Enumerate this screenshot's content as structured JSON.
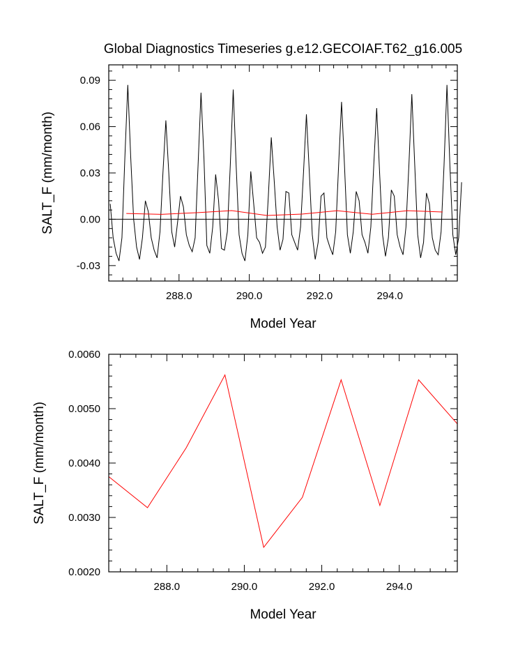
{
  "title": "Global Diagnostics Timeseries g.e12.GECOIAF.T62_g16.005",
  "chart_data": [
    {
      "type": "line",
      "xlabel": "Model Year",
      "ylabel": "SALT_F (mm/month)",
      "xlim": [
        286.0,
        295.92
      ],
      "ylim": [
        -0.04,
        0.1
      ],
      "x_ticks": [
        288.0,
        290.0,
        292.0,
        294.0
      ],
      "x_tick_labels": [
        "288.0",
        "290.0",
        "292.0",
        "294.0"
      ],
      "y_ticks": [
        -0.03,
        0.0,
        0.03,
        0.06,
        0.09
      ],
      "y_tick_labels": [
        "-0.03",
        "0.00",
        "0.03",
        "0.06",
        "0.09"
      ],
      "zero_line": true,
      "series": [
        {
          "color": "#000000",
          "x_start": 286.042,
          "x_step": 0.0833333,
          "values": [
            0.01,
            -0.012,
            -0.022,
            -0.027,
            -0.012,
            0.04,
            0.087,
            0.04,
            0.0,
            -0.018,
            -0.026,
            -0.012,
            0.012,
            0.005,
            -0.012,
            -0.02,
            -0.025,
            -0.008,
            0.03,
            0.064,
            0.03,
            -0.008,
            -0.018,
            -0.002,
            0.015,
            0.008,
            -0.01,
            -0.017,
            -0.021,
            -0.012,
            0.035,
            0.082,
            0.04,
            -0.017,
            -0.022,
            -0.005,
            0.029,
            0.012,
            -0.019,
            -0.02,
            -0.008,
            0.035,
            0.084,
            0.035,
            -0.01,
            -0.022,
            -0.027,
            -0.01,
            0.031,
            0.01,
            -0.012,
            -0.015,
            -0.022,
            -0.018,
            0.015,
            0.053,
            0.025,
            -0.005,
            -0.02,
            -0.013,
            0.018,
            0.017,
            -0.01,
            -0.015,
            -0.02,
            -0.005,
            0.03,
            0.068,
            0.03,
            -0.01,
            -0.026,
            -0.015,
            0.015,
            0.017,
            -0.012,
            -0.018,
            -0.023,
            -0.008,
            0.035,
            0.076,
            0.035,
            -0.01,
            -0.022,
            -0.008,
            0.018,
            0.012,
            -0.01,
            -0.015,
            -0.022,
            -0.005,
            0.035,
            0.072,
            0.03,
            -0.01,
            -0.024,
            -0.012,
            0.019,
            0.015,
            -0.01,
            -0.018,
            -0.023,
            -0.005,
            0.035,
            0.081,
            0.035,
            -0.01,
            -0.025,
            -0.015,
            0.017,
            0.01,
            -0.012,
            -0.02,
            -0.023,
            -0.008,
            0.035,
            0.087,
            0.035,
            -0.01,
            -0.023,
            -0.012,
            0.024
          ]
        },
        {
          "color": "#ff0000",
          "x": [
            286.5,
            287.5,
            288.5,
            289.5,
            290.5,
            291.5,
            292.5,
            293.5,
            294.5,
            295.5
          ],
          "values": [
            0.00375,
            0.00318,
            0.00428,
            0.00562,
            0.00245,
            0.00337,
            0.00553,
            0.00322,
            0.00553,
            0.00472
          ]
        }
      ]
    },
    {
      "type": "line",
      "xlabel": "Model Year",
      "ylabel": "SALT_F (mm/month)",
      "xlim": [
        286.5,
        295.5
      ],
      "ylim": [
        0.002,
        0.006
      ],
      "x_ticks": [
        288.0,
        290.0,
        292.0,
        294.0
      ],
      "x_tick_labels": [
        "288.0",
        "290.0",
        "292.0",
        "294.0"
      ],
      "y_ticks": [
        0.002,
        0.003,
        0.004,
        0.005,
        0.006
      ],
      "y_tick_labels": [
        "0.0020",
        "0.0030",
        "0.0040",
        "0.0050",
        "0.0060"
      ],
      "series": [
        {
          "color": "#ff0000",
          "x": [
            286.5,
            287.5,
            288.5,
            289.5,
            290.5,
            291.5,
            292.5,
            293.5,
            294.5,
            295.5
          ],
          "values": [
            0.00375,
            0.00318,
            0.00428,
            0.00562,
            0.00245,
            0.00337,
            0.00553,
            0.00322,
            0.00553,
            0.00472
          ]
        }
      ]
    }
  ]
}
